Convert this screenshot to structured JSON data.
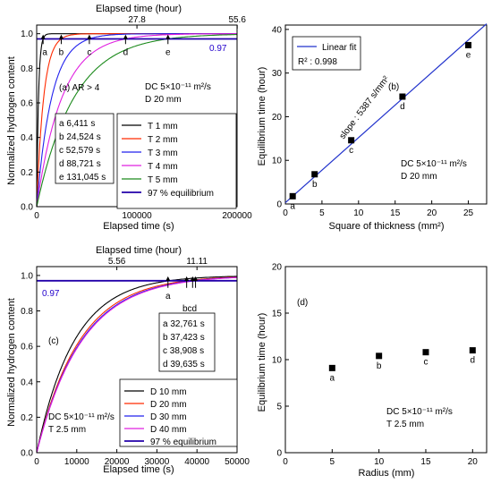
{
  "chart_data": [
    {
      "id": "a",
      "type": "line",
      "panel_label": "(a) AR > 4",
      "xlabel": "Elapsed time (s)",
      "ylabel": "Normalized hydrogen content",
      "top_axis_label": "Elapsed time (hour)",
      "xlim": [
        0,
        200000
      ],
      "ylim": [
        0,
        1.05
      ],
      "x_ticks": [
        0,
        100000,
        200000
      ],
      "x_tick_labels": [
        "0",
        "100000",
        "200000"
      ],
      "y_ticks": [
        0.0,
        0.2,
        0.4,
        0.6,
        0.8,
        1.0
      ],
      "y_tick_labels": [
        "0.0",
        "0.2",
        "0.4",
        "0.6",
        "0.8",
        "1.0"
      ],
      "top_ticks": [
        27.8,
        55.6
      ],
      "top_tick_labels": [
        "27.8",
        "55.6"
      ],
      "conditions": [
        "DC 5×10⁻¹¹ m²/s",
        "D 20 mm"
      ],
      "equilibrium_label": "0.97",
      "equilibrium_value": 0.97,
      "markers": [
        {
          "letter": "a",
          "value": 6411
        },
        {
          "letter": "b",
          "value": 24524
        },
        {
          "letter": "c",
          "value": 52579
        },
        {
          "letter": "d",
          "value": 88721
        },
        {
          "letter": "e",
          "value": 131045
        }
      ],
      "marker_table": [
        "a 6,411 s",
        "b 24,524 s",
        "c 52,579 s",
        "d 88,721 s",
        "e 131,045 s"
      ],
      "series": [
        {
          "name": "T 1 mm",
          "color": "#000000",
          "tau": 1830
        },
        {
          "name": "T 2 mm",
          "color": "#ff2a00",
          "tau": 7000
        },
        {
          "name": "T 3 mm",
          "color": "#2222ee",
          "tau": 15000
        },
        {
          "name": "T 4 mm",
          "color": "#e020e0",
          "tau": 25300
        },
        {
          "name": "T 5 mm",
          "color": "#1c8a1c",
          "tau": 37400
        },
        {
          "name": "97 % equilibrium",
          "color": "#2200aa",
          "constant": 0.97
        }
      ]
    },
    {
      "id": "b",
      "type": "scatter",
      "panel_label": "(b)",
      "xlabel": "Square of thickness (mm²)",
      "ylabel": "Equilibrium time (hour)",
      "xlim": [
        0,
        27.5
      ],
      "ylim": [
        0,
        41
      ],
      "x_ticks": [
        0,
        5,
        10,
        15,
        20,
        25
      ],
      "x_tick_labels": [
        "0",
        "5",
        "10",
        "15",
        "20",
        "25"
      ],
      "y_ticks": [
        0,
        10,
        20,
        30,
        40
      ],
      "y_tick_labels": [
        "0",
        "10",
        "20",
        "30",
        "40"
      ],
      "conditions": [
        "DC 5×10⁻¹¹ m²/s",
        "D 20 mm"
      ],
      "legend": {
        "fit_label": "Linear fit",
        "r2_label": "R² : 0.998"
      },
      "slope_label": "slope : 5387 s/mm²",
      "points": [
        {
          "label": "a",
          "x": 1,
          "y": 1.78
        },
        {
          "label": "b",
          "x": 4,
          "y": 6.81
        },
        {
          "label": "c",
          "x": 9,
          "y": 14.6
        },
        {
          "label": "d",
          "x": 16,
          "y": 24.6
        },
        {
          "label": "e",
          "x": 25,
          "y": 36.4
        }
      ],
      "fit": {
        "x": [
          0,
          27.5
        ],
        "y": [
          0.3,
          41.3
        ]
      }
    },
    {
      "id": "c",
      "type": "line",
      "panel_label": "(c)",
      "xlabel": "Elapsed time (s)",
      "ylabel": "Normalized hydrogen content",
      "top_axis_label": "Elapsed time (hour)",
      "xlim": [
        0,
        50000
      ],
      "ylim": [
        0,
        1.05
      ],
      "x_ticks": [
        0,
        10000,
        20000,
        30000,
        40000,
        50000
      ],
      "x_tick_labels": [
        "0",
        "10000",
        "20000",
        "30000",
        "40000",
        "50000"
      ],
      "y_ticks": [
        0.0,
        0.2,
        0.4,
        0.6,
        0.8,
        1.0
      ],
      "y_tick_labels": [
        "0.0",
        "0.2",
        "0.4",
        "0.6",
        "0.8",
        "1.0"
      ],
      "top_ticks": [
        20000,
        40000
      ],
      "top_tick_labels": [
        "5.56",
        "11.11"
      ],
      "conditions": [
        "DC 5×10⁻¹¹ m²/s",
        "T 2.5 mm"
      ],
      "equilibrium_label": "0.97",
      "equilibrium_value": 0.97,
      "markers": [
        {
          "letter": "a",
          "value": 32761
        },
        {
          "letter": "b",
          "value": 37423
        },
        {
          "letter": "c",
          "value": 38908
        },
        {
          "letter": "d",
          "value": 39635
        }
      ],
      "marker_group_label": "bcd",
      "marker_table": [
        "a 32,761 s",
        "b 37,423 s",
        "c 38,908 s",
        "d 39,635 s"
      ],
      "series": [
        {
          "name": "D 10 mm",
          "color": "#000000",
          "tau": 9400
        },
        {
          "name": "D 20 mm",
          "color": "#ff2a00",
          "tau": 10700
        },
        {
          "name": "D 30 mm",
          "color": "#2222ee",
          "tau": 11100
        },
        {
          "name": "D 40 mm",
          "color": "#e020e0",
          "tau": 11300
        },
        {
          "name": "97 % equilibrium",
          "color": "#2200aa",
          "constant": 0.97
        }
      ]
    },
    {
      "id": "d",
      "type": "scatter",
      "panel_label": "(d)",
      "xlabel": "Radius (mm)",
      "ylabel": "Equilibrium time (hour)",
      "xlim": [
        0,
        21.5
      ],
      "ylim": [
        0,
        20
      ],
      "x_ticks": [
        0,
        5,
        10,
        15,
        20
      ],
      "x_tick_labels": [
        "0",
        "5",
        "10",
        "15",
        "20"
      ],
      "y_ticks": [
        0,
        5,
        10,
        15,
        20
      ],
      "y_tick_labels": [
        "0",
        "5",
        "10",
        "15",
        "20"
      ],
      "conditions": [
        "DC 5×10⁻¹¹ m²/s",
        "T 2.5 mm"
      ],
      "points": [
        {
          "label": "a",
          "x": 5,
          "y": 9.1
        },
        {
          "label": "b",
          "x": 10,
          "y": 10.4
        },
        {
          "label": "c",
          "x": 15,
          "y": 10.8
        },
        {
          "label": "d",
          "x": 20,
          "y": 11.0
        }
      ]
    }
  ]
}
